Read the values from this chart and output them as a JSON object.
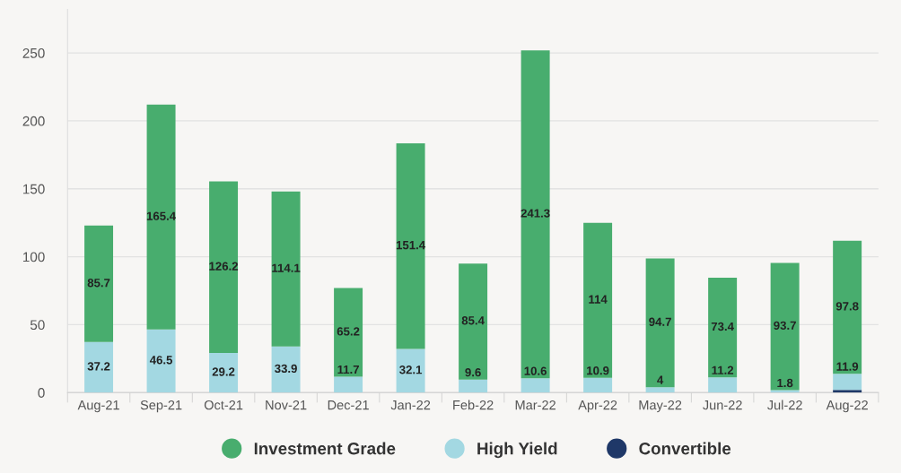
{
  "chart_data": {
    "type": "bar",
    "stacked": true,
    "categories": [
      "Aug-21",
      "Sep-21",
      "Oct-21",
      "Nov-21",
      "Dec-21",
      "Jan-22",
      "Feb-22",
      "Mar-22",
      "Apr-22",
      "May-22",
      "Jun-22",
      "Jul-22",
      "Aug-22"
    ],
    "series": [
      {
        "name": "Convertible",
        "color": "#1f3868",
        "values": [
          0,
          0,
          0,
          0,
          0,
          0,
          0,
          0,
          0,
          0,
          0,
          0,
          2
        ],
        "value_labels": [
          null,
          null,
          null,
          null,
          null,
          null,
          null,
          null,
          null,
          null,
          null,
          null,
          null
        ]
      },
      {
        "name": "High Yield",
        "color": "#a3d8e2",
        "values": [
          37.2,
          46.5,
          29.2,
          33.9,
          11.7,
          32.1,
          9.6,
          10.6,
          10.9,
          4,
          11.2,
          1.8,
          11.9
        ],
        "value_labels": [
          "37.2",
          "46.5",
          "29.2",
          "33.9",
          "11.7",
          "32.1",
          "9.6",
          "10.6",
          "10.9",
          "4",
          "11.2",
          "1.8",
          "11.9"
        ]
      },
      {
        "name": "Investment Grade",
        "color": "#48ad6e",
        "values": [
          85.7,
          165.4,
          126.2,
          114.1,
          65.2,
          151.4,
          85.4,
          241.3,
          114,
          94.7,
          73.4,
          93.7,
          97.8
        ],
        "value_labels": [
          "85.7",
          "165.4",
          "126.2",
          "114.1",
          "65.2",
          "151.4",
          "85.4",
          "241.3",
          "114",
          "94.7",
          "73.4",
          "93.7",
          "97.8"
        ]
      }
    ],
    "ylim": [
      0,
      282
    ],
    "yticks": [
      0,
      50,
      100,
      150,
      200,
      250
    ],
    "grid": "y",
    "legend": "bottom"
  }
}
